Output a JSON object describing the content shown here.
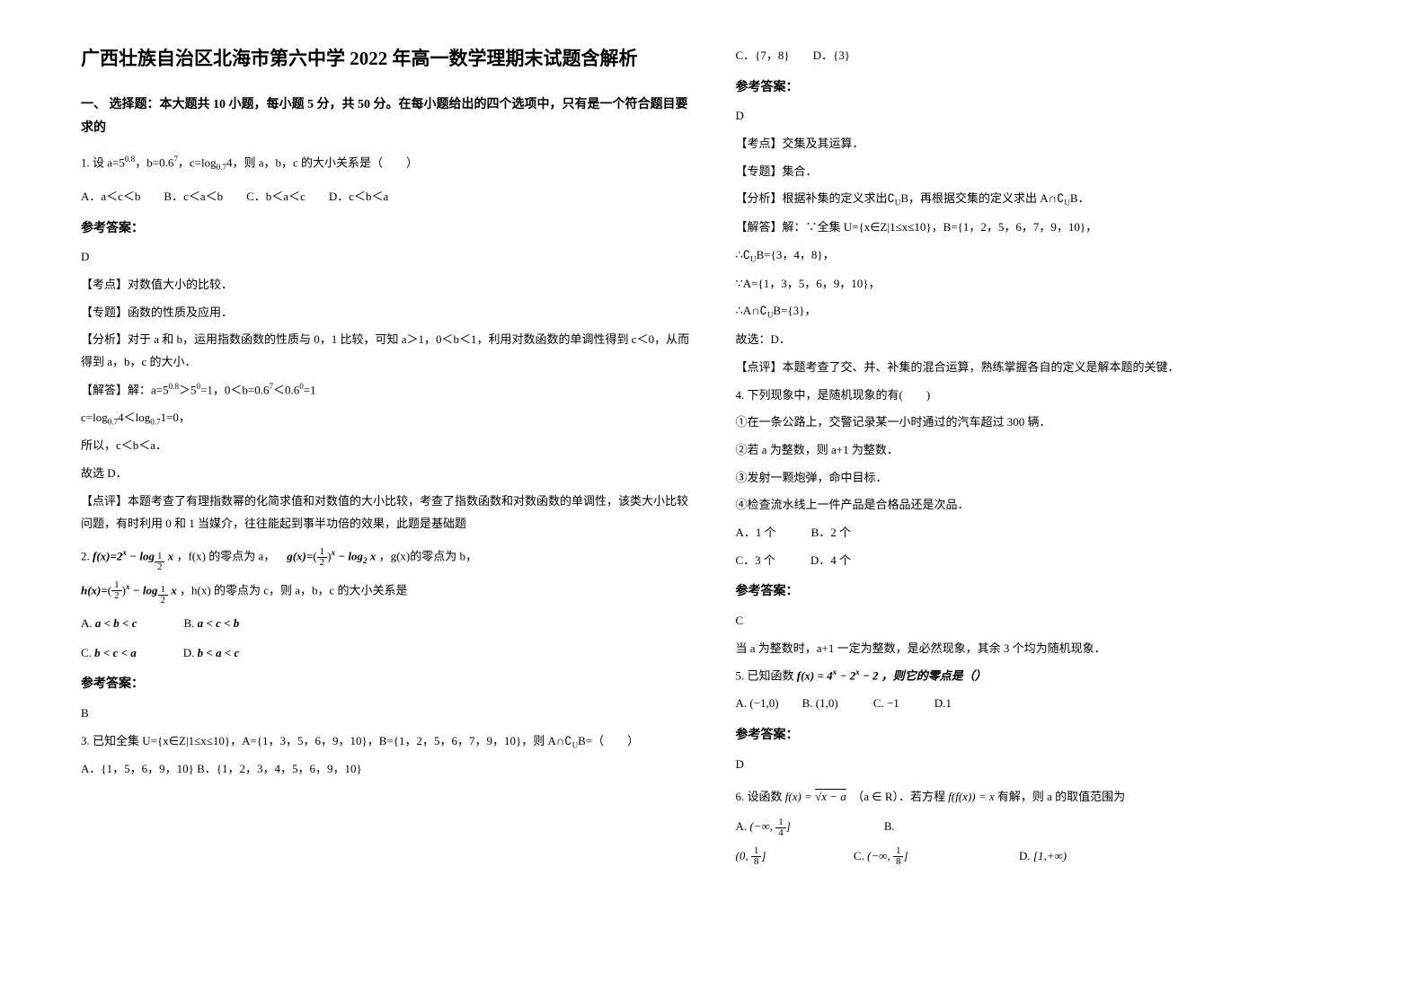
{
  "title": "广西壮族自治区北海市第六中学 2022 年高一数学理期末试题含解析",
  "section1": "一、 选择题：本大题共 10 小题，每小题 5 分，共 50 分。在每小题给出的四个选项中，只有是一个符合题目要求的",
  "q1": {
    "stem_pre": "1. 设 a=5",
    "stem_sup1": "0.8",
    "stem_mid1": "，b=0.6",
    "stem_sup2": "7",
    "stem_mid2": "，c=log",
    "stem_sub1": "0.7",
    "stem_end": "4，则 a，b，c 的大小关系是（　　）",
    "opts": "A．a＜c＜b　　B．c＜a＜b　　C．b＜a＜c　　D．c＜b＜a",
    "ans_label": "参考答案：",
    "ans": "D",
    "kd_label": "【考点】",
    "kd": "对数值大小的比较．",
    "zt_label": "【专题】",
    "zt": "函数的性质及应用．",
    "fx_label": "【分析】",
    "fx": "对于 a 和 b，运用指数函数的性质与 0，1 比较，可知 a＞1，0＜b＜1，利用对数函数的单调性得到 c＜0，从而得到 a，b，c 的大小．",
    "jd_label": "【解答】",
    "jd_l1_pre": "解：a=5",
    "jd_l1_sup1": "0.8",
    "jd_l1_mid1": "＞5",
    "jd_l1_sup2": "0",
    "jd_l1_mid2": "=1，0＜b=0.6",
    "jd_l1_sup3": "7",
    "jd_l1_mid3": "＜0.6",
    "jd_l1_sup4": "0",
    "jd_l1_end": "=1",
    "jd_l2_pre": "c=log",
    "jd_l2_sub1": "0.7",
    "jd_l2_mid": "4＜log",
    "jd_l2_sub2": "0.7",
    "jd_l2_end": "1=0，",
    "jd_l3": "所以，c＜b＜a．",
    "jd_l4": "故选 D．",
    "dp_label": "【点评】",
    "dp": "本题考查了有理指数幂的化简求值和对数值的大小比较，考查了指数函数和对数函数的单调性，该类大小比较问题，有时利用 0 和 1 当媒介，往往能起到事半功倍的效果，此题是基础题"
  },
  "q2": {
    "num": "2.",
    "f_def_pre": "f(x)=2",
    "f_def_sup": "x",
    "f_def_mid": " − log",
    "f_def_log_n": "1",
    "f_def_log_d": "2",
    "f_def_logarg": " x",
    "f_desc": "，f(x) 的零点为 a，",
    "g_def_pre": "g(x)=",
    "g_def_par_n": "1",
    "g_def_par_d": "2",
    "g_def_sup": "x",
    "g_def_mid": " − log",
    "g_def_sub": "2",
    "g_def_arg": " x",
    "g_desc": "，g(x)的零点为 b，",
    "h_def_pre": "h(x)=",
    "h_def_par_n": "1",
    "h_def_par_d": "2",
    "h_def_sup": "x",
    "h_def_mid": " − log",
    "h_def_log_n": "1",
    "h_def_log_d": "2",
    "h_def_arg": " x",
    "h_desc": "，h(x) 的零点为 c，则 a，b，c 的大小关系是",
    "optA": "A.",
    "optA_ex": "a < b < c",
    "optB": "B.",
    "optB_ex": "a < c < b",
    "optC": "C.",
    "optC_ex": "b < c < a",
    "optD": "D.",
    "optD_ex": "b < a < c",
    "ans_label": "参考答案：",
    "ans": "B"
  },
  "q3": {
    "stem": "3. 已知全集 U={x∈Z|1≤x≤10}，A={1，3，5，6，9，10}，B={1，2，5，6，7，9，10}，则 A∩∁",
    "stem_sub": "U",
    "stem_end": "B=（　　）",
    "optsL": "A．{1，5，6，9，10}  B．{1，2，3，4，5，6，9，10}"
  },
  "q3r": {
    "optsR": "C．{7，8}　　D．{3}",
    "ans_label": "参考答案：",
    "ans": "D",
    "kd_label": "【考点】",
    "kd": "交集及其运算．",
    "zt_label": "【专题】",
    "zt": "集合．",
    "fx_label": "【分析】",
    "fx_pre": "根据补集的定义求出∁",
    "fx_sub": "U",
    "fx_mid": "B，再根据交集的定义求出 A∩∁",
    "fx_sub2": "U",
    "fx_end": "B．",
    "jd_label": "【解答】",
    "jd_l1": "解：∵全集 U={x∈Z|1≤x≤10}，B={1，2，5，6，7，9，10}，",
    "jd_l2_pre": "∴∁",
    "jd_l2_sub": "U",
    "jd_l2_end": "B={3，4，8}，",
    "jd_l3": "∵A={1，3，5，6，9，10}，",
    "jd_l4_pre": "∴A∩∁",
    "jd_l4_sub": "U",
    "jd_l4_end": "B={3}，",
    "jd_l5": "故选：D．",
    "dp_label": "【点评】",
    "dp": "本题考查了交、并、补集的混合运算，熟练掌握各自的定义是解本题的关键．"
  },
  "q4": {
    "stem": "4. 下列现象中，是随机现象的有(　　)",
    "l1": "①在一条公路上，交警记录某一小时通过的汽车超过 300 辆．",
    "l2": "②若 a 为整数，则 a+1 为整数．",
    "l3": "③发射一颗炮弹，命中目标．",
    "l4": "④检查流水线上一件产品是合格品还是次品．",
    "optsAB": "A．1 个　　　B．2 个",
    "optsCD": "C．3 个　　　D．4 个",
    "ans_label": "参考答案：",
    "ans": "C",
    "exp": "当 a 为整数时，a+1 一定为整数，是必然现象，其余 3 个均为随机现象．"
  },
  "q5": {
    "stem_pre": "5. 已知函数 ",
    "stem_fx": "f(x) = 4",
    "stem_sup1": "x",
    "stem_mid": " − 2",
    "stem_sup2": "x",
    "stem_end": " − 2 ，则它的零点是（）",
    "opts": "A. (−1,0)　　B. (1,0)　　　C. −1　　　D.1",
    "ans_label": "参考答案：",
    "ans": "D"
  },
  "q6": {
    "stem_pre": "6. 设函数 ",
    "stem_fx_pre": "f(x) = ",
    "stem_sqrt_in": "x − a",
    "stem_cond": "（a ∈ R）",
    "stem_mid2": "．若方程 ",
    "stem_ffx": "f(f(x)) = x",
    "stem_end": " 有解，则 a 的取值范围为",
    "optA_label": "A.",
    "optA_pre": "(−∞, ",
    "optA_n": "1",
    "optA_d": "4",
    "optA_end": "]",
    "optB_label": "B.",
    "optB_pre2": "(0, ",
    "optB_n": "1",
    "optB_d": "8",
    "optB_end": "]",
    "optC_label": "C.",
    "optC_pre": "(−∞, ",
    "optC_n": "1",
    "optC_d": "8",
    "optC_end": "]",
    "optD_label": "D.",
    "optD_ex": "[1,+∞)"
  }
}
